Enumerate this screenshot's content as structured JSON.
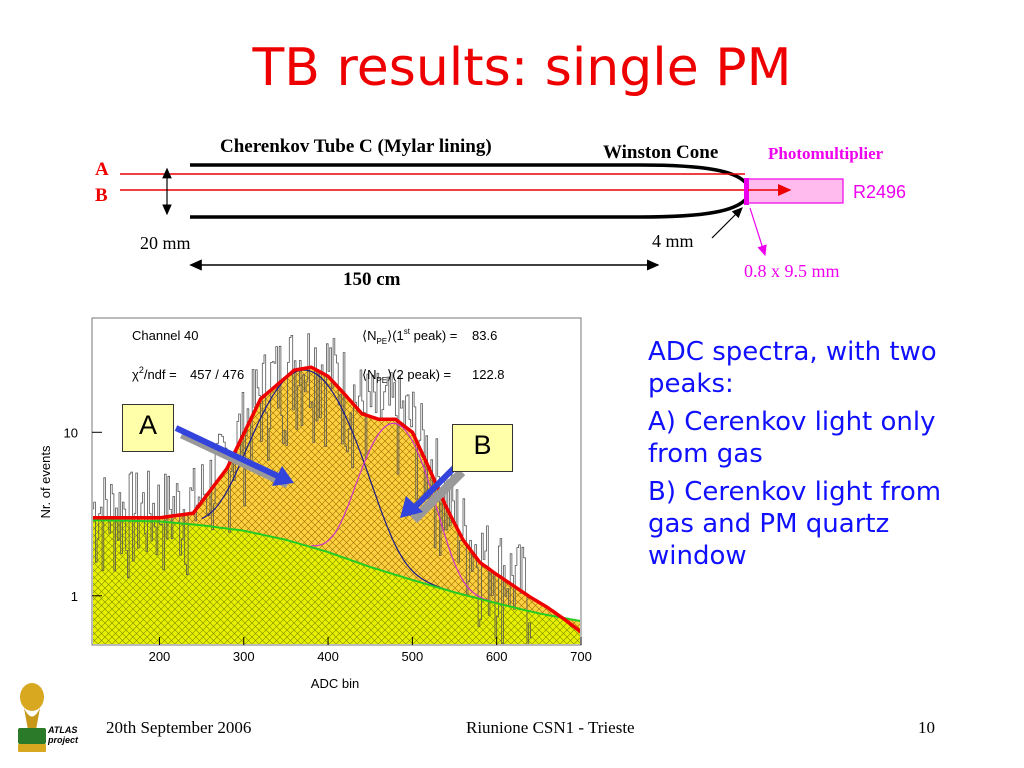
{
  "slide": {
    "title": "TB results: single PM",
    "bullets": [
      "ADC spectra, with two peaks:",
      "A) Cerenkov light only from gas",
      "B) Cerenkov light from gas and PM quartz window"
    ],
    "footer": {
      "date": "20th September 2006",
      "meeting": "Riunione CSN1 - Trieste",
      "page": "10",
      "logo_text": [
        "ATLAS",
        "project"
      ]
    }
  },
  "diagram": {
    "tube_label": "Cherenkov Tube C (Mylar lining)",
    "cone_label": "Winston Cone",
    "pm_label": "Photomultiplier",
    "pm_model": "R2496",
    "ray_a": "A",
    "ray_b": "B",
    "diameter": "20 mm",
    "cone_exit": "4 mm",
    "length": "150 cm",
    "window": "0.8 x 9.5 mm"
  },
  "colors": {
    "title": "#ee0000",
    "text_blue": "#1010ff",
    "pm_magenta": "#ee00ee",
    "fit_red": "#ee0000",
    "fill_yellow": "#e8f000",
    "fill_orange": "#ffd040",
    "arrow_blue": "#3344dd"
  },
  "chart_data": {
    "type": "line",
    "xlabel": "ADC bin",
    "ylabel": "Nr. of events",
    "xlim": [
      120,
      700
    ],
    "ylim": [
      0.5,
      50
    ],
    "yscale": "log",
    "x_ticks": [
      200,
      300,
      400,
      500,
      600,
      700
    ],
    "y_ticks": [
      1,
      10
    ],
    "grid": false,
    "stats": {
      "channel": "Channel 40",
      "chi2": "457 / 476",
      "peak1": "83.6",
      "peak2": "122.8"
    },
    "callouts": [
      "A",
      "B"
    ],
    "series": [
      {
        "x": [
          125,
          200,
          240,
          280,
          320,
          360,
          380,
          400,
          420,
          440,
          460,
          480,
          500,
          520,
          540,
          560,
          580,
          600,
          620,
          640,
          660,
          680,
          700
        ],
        "values": [
          3.0,
          3.0,
          3.2,
          6.0,
          16.0,
          24.0,
          25.0,
          22.0,
          17.0,
          13.0,
          12.0,
          12.0,
          10.0,
          6.0,
          3.5,
          2.2,
          1.6,
          1.35,
          1.15,
          0.98,
          0.85,
          0.72,
          0.6
        ]
      },
      {
        "x": [
          125,
          200,
          250,
          300,
          350,
          400,
          450,
          500,
          550,
          600,
          650,
          700
        ],
        "values": [
          2.9,
          2.85,
          2.7,
          2.5,
          2.2,
          1.85,
          1.5,
          1.25,
          1.05,
          0.9,
          0.78,
          0.7
        ]
      }
    ]
  }
}
